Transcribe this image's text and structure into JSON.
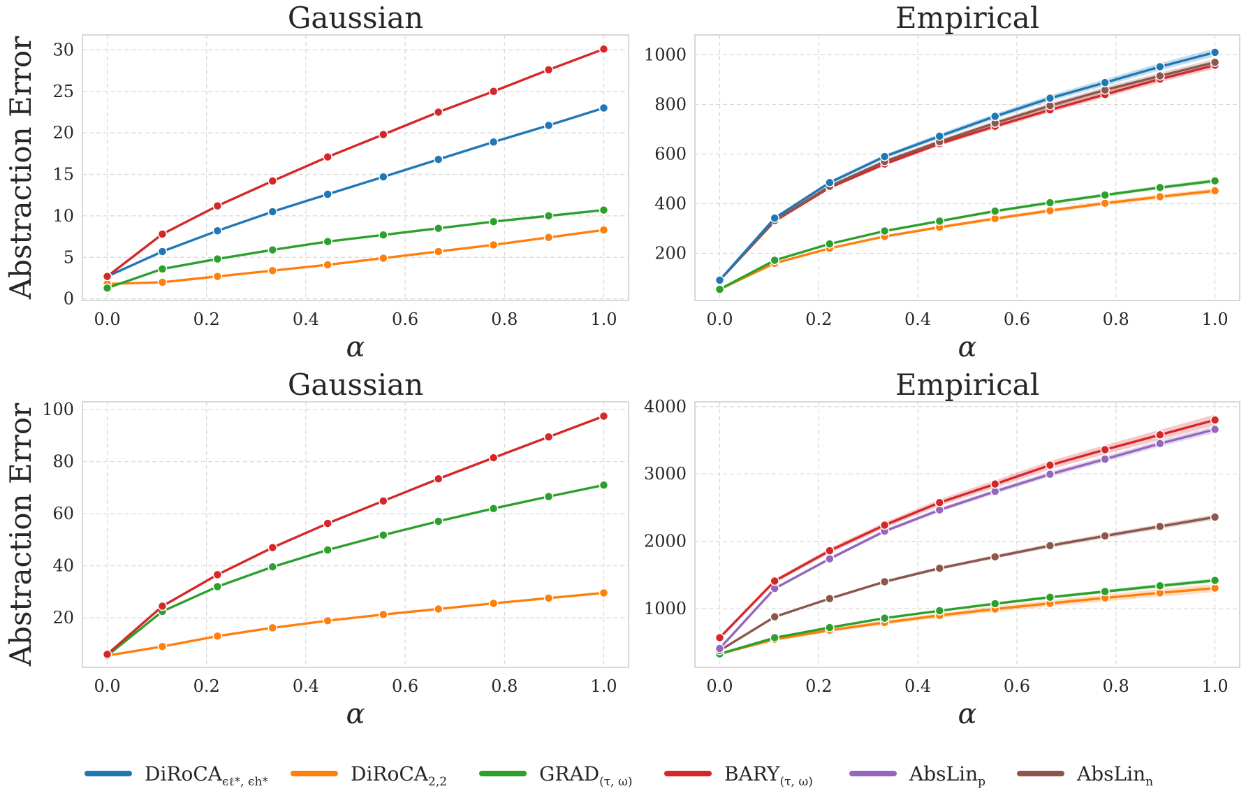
{
  "figure": {
    "legend": [
      {
        "name": "DiRoCA",
        "sub": "ϵℓ*, ϵh*",
        "color": "#1f77b4"
      },
      {
        "name": "DiRoCA",
        "sub": "2,2",
        "color": "#ff7f0e"
      },
      {
        "name": "GRAD",
        "sub": "(τ, ω)",
        "color": "#2ca02c"
      },
      {
        "name": "BARY",
        "sub": "(τ, ω)",
        "color": "#d62728"
      },
      {
        "name": "AbsLin",
        "sub": "p",
        "color": "#9467bd"
      },
      {
        "name": "AbsLin",
        "sub": "n",
        "color": "#8c564b"
      }
    ]
  },
  "chart_data": [
    {
      "type": "line",
      "title": "Gaussian",
      "xlabel": "α",
      "ylabel": "Abstraction Error",
      "xlim": [
        -0.05,
        1.05
      ],
      "ylim": [
        -0.2,
        31.8
      ],
      "xticks": [
        "0.0",
        "0.2",
        "0.4",
        "0.6",
        "0.8",
        "1.0"
      ],
      "yticks": [
        0,
        5,
        10,
        15,
        20,
        25,
        30
      ],
      "x": [
        0,
        0.111,
        0.222,
        0.333,
        0.444,
        0.556,
        0.667,
        0.778,
        0.889,
        1.0
      ],
      "series": [
        {
          "name": "DiRoCA_2,2",
          "color": "#ff7f0e",
          "values": [
            1.8,
            2.0,
            2.7,
            3.4,
            4.1,
            4.9,
            5.7,
            6.5,
            7.4,
            8.3
          ]
        },
        {
          "name": "GRAD",
          "color": "#2ca02c",
          "values": [
            1.3,
            3.6,
            4.8,
            5.9,
            6.9,
            7.7,
            8.5,
            9.3,
            10.0,
            10.7
          ]
        },
        {
          "name": "DiRoCA_eps",
          "color": "#1f77b4",
          "values": [
            2.7,
            5.7,
            8.2,
            10.5,
            12.6,
            14.7,
            16.8,
            18.9,
            20.9,
            23.0
          ]
        },
        {
          "name": "BARY",
          "color": "#d62728",
          "values": [
            2.7,
            7.8,
            11.2,
            14.2,
            17.1,
            19.8,
            22.5,
            25.0,
            27.6,
            30.1
          ]
        }
      ]
    },
    {
      "type": "line",
      "title": "Empirical",
      "xlabel": "α",
      "ylabel": "",
      "xlim": [
        -0.05,
        1.05
      ],
      "ylim": [
        10,
        1080
      ],
      "xticks": [
        "0.0",
        "0.2",
        "0.4",
        "0.6",
        "0.8",
        "1.0"
      ],
      "yticks": [
        200,
        400,
        600,
        800,
        1000
      ],
      "x": [
        0,
        0.111,
        0.222,
        0.333,
        0.444,
        0.556,
        0.667,
        0.778,
        0.889,
        1.0
      ],
      "series": [
        {
          "name": "DiRoCA_2,2",
          "color": "#ff7f0e",
          "band": 10,
          "values": [
            55,
            160,
            220,
            268,
            305,
            340,
            372,
            402,
            428,
            452
          ]
        },
        {
          "name": "GRAD",
          "color": "#2ca02c",
          "band": 8,
          "values": [
            55,
            172,
            238,
            290,
            330,
            370,
            404,
            435,
            465,
            492
          ]
        },
        {
          "name": "BARY",
          "color": "#d62728",
          "band": 14,
          "values": [
            92,
            330,
            465,
            560,
            642,
            712,
            778,
            840,
            902,
            958
          ]
        },
        {
          "name": "AbsLin_n",
          "color": "#8c564b",
          "band": 14,
          "values": [
            92,
            332,
            470,
            570,
            650,
            725,
            795,
            858,
            915,
            970
          ]
        },
        {
          "name": "DiRoCA_eps",
          "color": "#1f77b4",
          "band": 16,
          "values": [
            92,
            342,
            485,
            590,
            672,
            752,
            825,
            888,
            952,
            1010
          ]
        }
      ]
    },
    {
      "type": "line",
      "title": "Gaussian",
      "xlabel": "α",
      "ylabel": "Abstraction Error",
      "xlim": [
        -0.05,
        1.05
      ],
      "ylim": [
        1,
        103
      ],
      "xticks": [
        "0.0",
        "0.2",
        "0.4",
        "0.6",
        "0.8",
        "1.0"
      ],
      "yticks": [
        20,
        40,
        60,
        80,
        100
      ],
      "x": [
        0,
        0.111,
        0.222,
        0.333,
        0.444,
        0.556,
        0.667,
        0.778,
        0.889,
        1.0
      ],
      "series": [
        {
          "name": "DiRoCA_2,2",
          "color": "#ff7f0e",
          "values": [
            5.5,
            9.0,
            13.0,
            16.2,
            18.9,
            21.3,
            23.4,
            25.6,
            27.6,
            29.6
          ]
        },
        {
          "name": "GRAD",
          "color": "#2ca02c",
          "values": [
            5.5,
            22.5,
            32.0,
            39.6,
            46.1,
            51.8,
            57.1,
            62.0,
            66.6,
            71.0
          ]
        },
        {
          "name": "BARY",
          "color": "#d62728",
          "values": [
            6.0,
            24.5,
            36.6,
            47.0,
            56.3,
            64.9,
            73.4,
            81.5,
            89.5,
            97.5
          ]
        }
      ]
    },
    {
      "type": "line",
      "title": "Empirical",
      "xlabel": "α",
      "ylabel": "",
      "xlim": [
        -0.05,
        1.05
      ],
      "ylim": [
        130,
        4070
      ],
      "xticks": [
        "0.0",
        "0.2",
        "0.4",
        "0.6",
        "0.8",
        "1.0"
      ],
      "yticks": [
        1000,
        2000,
        3000,
        4000
      ],
      "x": [
        0,
        0.111,
        0.222,
        0.333,
        0.444,
        0.556,
        0.667,
        0.778,
        0.889,
        1.0
      ],
      "series": [
        {
          "name": "DiRoCA_2,2",
          "color": "#ff7f0e",
          "band": 60,
          "values": [
            330,
            545,
            680,
            795,
            900,
            995,
            1080,
            1160,
            1235,
            1305
          ]
        },
        {
          "name": "GRAD",
          "color": "#2ca02c",
          "band": 30,
          "values": [
            330,
            570,
            720,
            860,
            970,
            1075,
            1170,
            1255,
            1340,
            1420
          ]
        },
        {
          "name": "AbsLin_n",
          "color": "#8c564b",
          "band": 40,
          "values": [
            380,
            880,
            1150,
            1400,
            1600,
            1770,
            1935,
            2080,
            2220,
            2360
          ]
        },
        {
          "name": "AbsLin_p",
          "color": "#9467bd",
          "band": 50,
          "values": [
            410,
            1300,
            1740,
            2150,
            2465,
            2740,
            2995,
            3220,
            3450,
            3660
          ]
        },
        {
          "name": "BARY",
          "color": "#d62728",
          "band": 80,
          "values": [
            570,
            1410,
            1860,
            2240,
            2575,
            2850,
            3130,
            3360,
            3580,
            3800
          ]
        }
      ]
    }
  ]
}
